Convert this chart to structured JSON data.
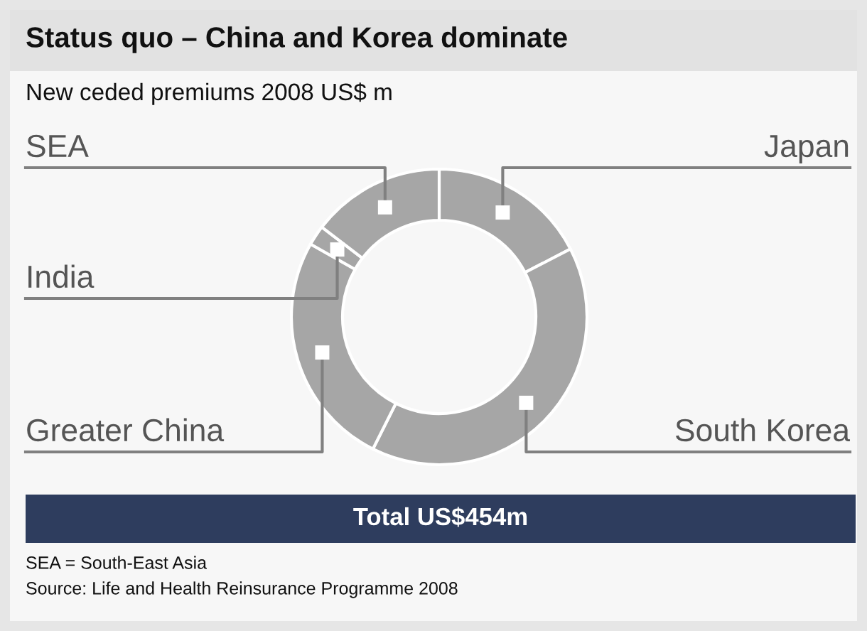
{
  "chart_data": {
    "type": "donut",
    "title": "Status quo – China and Korea dominate",
    "subtitle": "New ceded premiums 2008 US$ m",
    "categories": [
      "Japan",
      "South Korea",
      "Greater China",
      "India",
      "SEA"
    ],
    "values": [
      17.4,
      40.0,
      25.8,
      2.2,
      14.6
    ],
    "colors": [
      "#a6a6a6",
      "#a6a6a6",
      "#a6a6a6",
      "#a6a6a6",
      "#a6a6a6"
    ],
    "annotations": [
      "Total US$454m",
      "SEA = South-East Asia",
      "Source: Life and Health Reinsurance Programme 2008"
    ]
  }
}
